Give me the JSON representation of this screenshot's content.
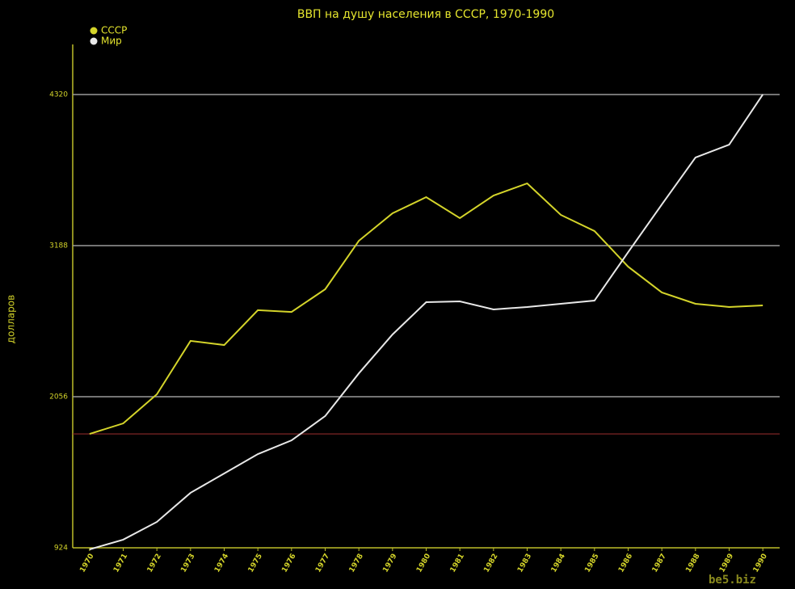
{
  "chart_data": {
    "type": "line",
    "title": "ВВП на душу населения в СССР, 1970-1990",
    "y_label": "долларов",
    "watermark": "be5.biz",
    "x": [
      1970,
      1971,
      1972,
      1973,
      1974,
      1975,
      1976,
      1977,
      1978,
      1979,
      1980,
      1981,
      1982,
      1983,
      1984,
      1985,
      1986,
      1987,
      1988,
      1989,
      1990
    ],
    "xlim": [
      1969.5,
      1990.5
    ],
    "xticks": [
      1970,
      1971,
      1972,
      1973,
      1974,
      1975,
      1976,
      1977,
      1978,
      1979,
      1980,
      1981,
      1982,
      1983,
      1984,
      1985,
      1986,
      1987,
      1988,
      1989,
      1990
    ],
    "ylim": [
      924,
      4695
    ],
    "yticks": [
      924,
      2056,
      3188,
      4320
    ],
    "grid": true,
    "legend": "top-left",
    "reference_color": "#8b2a2a",
    "series": [
      {
        "name": "СССР",
        "color": "#d4d42a",
        "values": [
          1777,
          1856,
          2074,
          2474,
          2443,
          2704,
          2691,
          2861,
          3224,
          3430,
          3551,
          3394,
          3563,
          3654,
          3418,
          3297,
          3030,
          2837,
          2752,
          2728,
          2740
        ]
      },
      {
        "name": "Мир",
        "color": "#e8e8e8",
        "values": [
          912,
          985,
          1118,
          1336,
          1481,
          1626,
          1729,
          1911,
          2231,
          2522,
          2764,
          2770,
          2710,
          2728,
          2752,
          2776,
          3139,
          3496,
          3848,
          3944,
          4320
        ]
      }
    ]
  }
}
